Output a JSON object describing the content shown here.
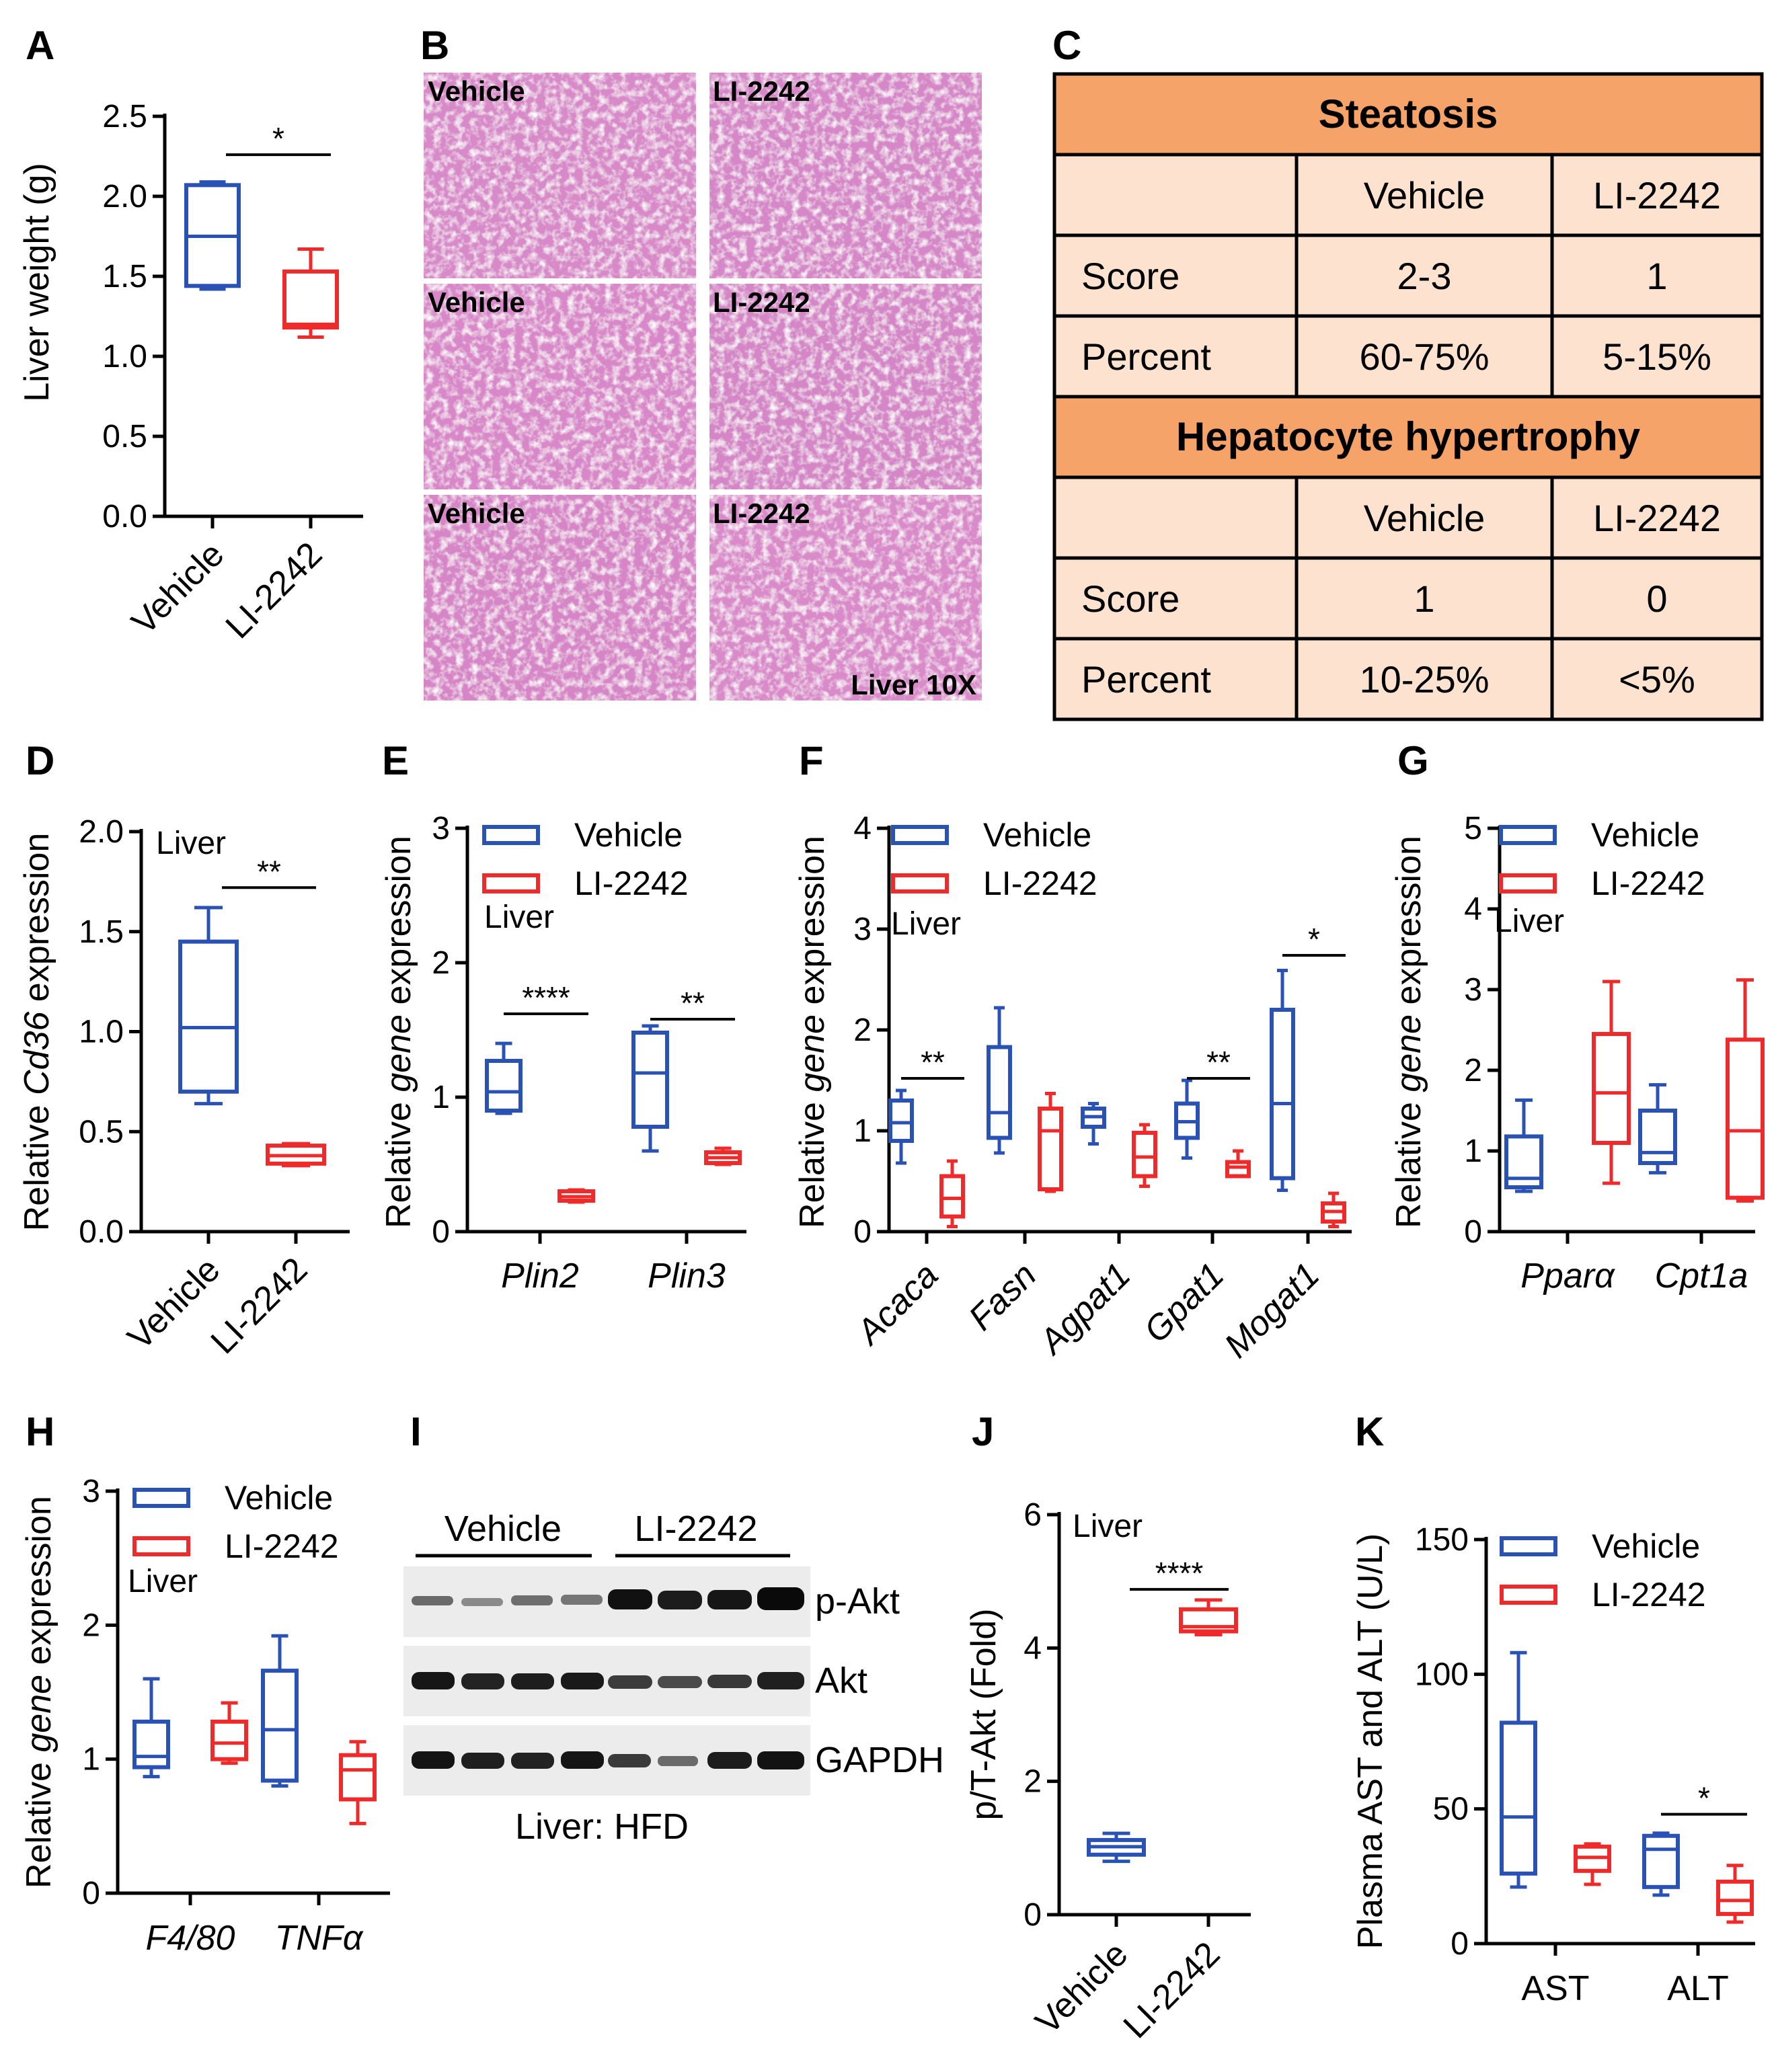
{
  "colors": {
    "vehicle": "#2a52b5",
    "li2242": "#ee2a2a",
    "table_header": "#f6a36a",
    "table_cell": "#fde3cf"
  },
  "panel_letters": [
    "A",
    "B",
    "C",
    "D",
    "E",
    "F",
    "G",
    "H",
    "I",
    "J",
    "K"
  ],
  "panel_b": {
    "tiles": [
      {
        "label": "Vehicle"
      },
      {
        "label": "LI-2242"
      },
      {
        "label": "Vehicle"
      },
      {
        "label": "LI-2242"
      },
      {
        "label": "Vehicle"
      },
      {
        "label": "LI-2242"
      }
    ],
    "magnification": "Liver 10X"
  },
  "panel_c": {
    "sections": [
      {
        "title": "Steatosis",
        "columns": [
          "",
          "Vehicle",
          "LI-2242"
        ],
        "rows": [
          [
            "Score",
            "2-3",
            "1"
          ],
          [
            "Percent",
            "60-75%",
            "5-15%"
          ]
        ]
      },
      {
        "title": "Hepatocyte hypertrophy",
        "columns": [
          "",
          "Vehicle",
          "LI-2242"
        ],
        "rows": [
          [
            "Score",
            "1",
            "0"
          ],
          [
            "Percent",
            "10-25%",
            "<5%"
          ]
        ]
      }
    ]
  },
  "panel_i": {
    "groups": [
      "Vehicle",
      "LI-2242"
    ],
    "bands": [
      "p-Akt",
      "Akt",
      "GAPDH"
    ],
    "caption": "Liver: HFD"
  },
  "chart_data": [
    {
      "panel": "A",
      "type": "box",
      "title": "",
      "xlabel": "",
      "ylabel": "Liver weight (g)",
      "ylim": [
        0,
        2.5
      ],
      "yticks": [
        "0.0",
        "0.5",
        "1.0",
        "1.5",
        "2.0",
        "2.5"
      ],
      "categories": [
        "Vehicle",
        "LI-2242"
      ],
      "rotate_categories": true,
      "tissue": "",
      "legend": [],
      "groups": [
        {
          "category": "Vehicle",
          "series": "Vehicle",
          "min": 1.42,
          "q1": 1.44,
          "median": 1.75,
          "q3": 2.07,
          "max": 2.09
        },
        {
          "category": "LI-2242",
          "series": "LI-2242",
          "min": 1.12,
          "q1": 1.18,
          "median": 1.2,
          "q3": 1.53,
          "max": 1.67
        }
      ],
      "significance": [
        {
          "label": "*",
          "category": "Vehicle|LI-2242",
          "level": 2.26
        }
      ]
    },
    {
      "panel": "D",
      "type": "box",
      "title": "",
      "xlabel": "",
      "ylabel": "Relative Cd36 expression",
      "ylim": [
        0,
        2.0
      ],
      "yticks": [
        "0.0",
        "0.5",
        "1.0",
        "1.5",
        "2.0"
      ],
      "categories": [
        "Vehicle",
        "LI-2242"
      ],
      "rotate_categories": true,
      "tissue": "Liver",
      "legend": [],
      "groups": [
        {
          "category": "Vehicle",
          "series": "Vehicle",
          "min": 0.64,
          "q1": 0.7,
          "median": 1.02,
          "q3": 1.45,
          "max": 1.62
        },
        {
          "category": "LI-2242",
          "series": "LI-2242",
          "min": 0.33,
          "q1": 0.34,
          "median": 0.38,
          "q3": 0.43,
          "max": 0.44
        }
      ],
      "significance": [
        {
          "label": "**",
          "category": "Vehicle|LI-2242",
          "level": 1.72
        }
      ]
    },
    {
      "panel": "E",
      "type": "box",
      "title": "",
      "xlabel": "",
      "ylabel": "Relative gene expression",
      "ylim": [
        0,
        3
      ],
      "yticks": [
        "0",
        "1",
        "2",
        "3"
      ],
      "categories": [
        "Plin2",
        "Plin3"
      ],
      "rotate_categories": false,
      "tissue": "Liver",
      "legend": [
        "Vehicle",
        "LI-2242"
      ],
      "groups": [
        {
          "category": "Plin2",
          "series": "Vehicle",
          "min": 0.88,
          "q1": 0.9,
          "median": 1.04,
          "q3": 1.27,
          "max": 1.4
        },
        {
          "category": "Plin2",
          "series": "LI-2242",
          "min": 0.22,
          "q1": 0.23,
          "median": 0.26,
          "q3": 0.3,
          "max": 0.31
        },
        {
          "category": "Plin3",
          "series": "Vehicle",
          "min": 0.6,
          "q1": 0.78,
          "median": 1.18,
          "q3": 1.48,
          "max": 1.53
        },
        {
          "category": "Plin3",
          "series": "LI-2242",
          "min": 0.5,
          "q1": 0.51,
          "median": 0.55,
          "q3": 0.59,
          "max": 0.62
        }
      ],
      "significance": [
        {
          "label": "****",
          "category": "Plin2",
          "level": 1.62
        },
        {
          "label": "**",
          "category": "Plin3",
          "level": 1.58
        }
      ]
    },
    {
      "panel": "F",
      "type": "box",
      "title": "",
      "xlabel": "",
      "ylabel": "Relative gene expression",
      "ylim": [
        0,
        4
      ],
      "yticks": [
        "0",
        "1",
        "2",
        "3",
        "4"
      ],
      "categories": [
        "Acaca",
        "Fasn",
        "Agpat1",
        "Gpat1",
        "Mogat1"
      ],
      "rotate_categories": true,
      "tissue": "Liver",
      "legend": [
        "Vehicle",
        "LI-2242"
      ],
      "groups": [
        {
          "category": "Acaca",
          "series": "Vehicle",
          "min": 0.68,
          "q1": 0.9,
          "median": 1.08,
          "q3": 1.3,
          "max": 1.4
        },
        {
          "category": "Acaca",
          "series": "LI-2242",
          "min": 0.05,
          "q1": 0.15,
          "median": 0.33,
          "q3": 0.55,
          "max": 0.7
        },
        {
          "category": "Fasn",
          "series": "Vehicle",
          "min": 0.78,
          "q1": 0.93,
          "median": 1.18,
          "q3": 1.83,
          "max": 2.22
        },
        {
          "category": "Fasn",
          "series": "LI-2242",
          "min": 0.4,
          "q1": 0.42,
          "median": 1.0,
          "q3": 1.22,
          "max": 1.37
        },
        {
          "category": "Agpat1",
          "series": "Vehicle",
          "min": 0.87,
          "q1": 1.04,
          "median": 1.14,
          "q3": 1.22,
          "max": 1.27
        },
        {
          "category": "Agpat1",
          "series": "LI-2242",
          "min": 0.45,
          "q1": 0.55,
          "median": 0.74,
          "q3": 0.98,
          "max": 1.06
        },
        {
          "category": "Gpat1",
          "series": "Vehicle",
          "min": 0.73,
          "q1": 0.93,
          "median": 1.09,
          "q3": 1.27,
          "max": 1.5
        },
        {
          "category": "Gpat1",
          "series": "LI-2242",
          "min": 0.55,
          "q1": 0.55,
          "median": 0.64,
          "q3": 0.69,
          "max": 0.8
        },
        {
          "category": "Mogat1",
          "series": "Vehicle",
          "min": 0.41,
          "q1": 0.53,
          "median": 1.27,
          "q3": 2.2,
          "max": 2.59
        },
        {
          "category": "Mogat1",
          "series": "LI-2242",
          "min": 0.05,
          "q1": 0.1,
          "median": 0.2,
          "q3": 0.28,
          "max": 0.38
        }
      ],
      "significance": [
        {
          "label": "**",
          "category": "Acaca",
          "level": 1.52
        },
        {
          "label": "**",
          "category": "Gpat1",
          "level": 1.52
        },
        {
          "label": "*",
          "category": "Mogat1",
          "level": 2.74
        }
      ]
    },
    {
      "panel": "G",
      "type": "box",
      "title": "",
      "xlabel": "",
      "ylabel": "Relative gene expression",
      "ylim": [
        0,
        5
      ],
      "yticks": [
        "0",
        "1",
        "2",
        "3",
        "4",
        "5"
      ],
      "categories": [
        "Pparα",
        "Cpt1a"
      ],
      "rotate_categories": false,
      "tissue": "Liver",
      "legend": [
        "Vehicle",
        "LI-2242"
      ],
      "groups": [
        {
          "category": "Pparα",
          "series": "Vehicle",
          "min": 0.5,
          "q1": 0.55,
          "median": 0.66,
          "q3": 1.18,
          "max": 1.63
        },
        {
          "category": "Pparα",
          "series": "LI-2242",
          "min": 0.6,
          "q1": 1.1,
          "median": 1.72,
          "q3": 2.45,
          "max": 3.1
        },
        {
          "category": "Cpt1a",
          "series": "Vehicle",
          "min": 0.73,
          "q1": 0.85,
          "median": 0.98,
          "q3": 1.5,
          "max": 1.82
        },
        {
          "category": "Cpt1a",
          "series": "LI-2242",
          "min": 0.38,
          "q1": 0.42,
          "median": 1.25,
          "q3": 2.38,
          "max": 3.12
        }
      ],
      "significance": []
    },
    {
      "panel": "H",
      "type": "box",
      "title": "",
      "xlabel": "",
      "ylabel": "Relative gene expression",
      "ylim": [
        0,
        3
      ],
      "yticks": [
        "0",
        "1",
        "2",
        "3"
      ],
      "categories": [
        "F4/80",
        "TNFα"
      ],
      "rotate_categories": false,
      "tissue": "Liver",
      "legend": [
        "Vehicle",
        "LI-2242"
      ],
      "groups": [
        {
          "category": "F4/80",
          "series": "Vehicle",
          "min": 0.87,
          "q1": 0.94,
          "median": 1.02,
          "q3": 1.28,
          "max": 1.6
        },
        {
          "category": "F4/80",
          "series": "LI-2242",
          "min": 0.97,
          "q1": 1.0,
          "median": 1.12,
          "q3": 1.28,
          "max": 1.42
        },
        {
          "category": "TNFα",
          "series": "Vehicle",
          "min": 0.8,
          "q1": 0.84,
          "median": 1.22,
          "q3": 1.66,
          "max": 1.92
        },
        {
          "category": "TNFα",
          "series": "LI-2242",
          "min": 0.52,
          "q1": 0.7,
          "median": 0.92,
          "q3": 1.03,
          "max": 1.13
        }
      ],
      "significance": []
    },
    {
      "panel": "J",
      "type": "box",
      "title": "",
      "xlabel": "",
      "ylabel": "p/T-Akt (Fold)",
      "ylim": [
        0,
        6
      ],
      "yticks": [
        "0",
        "2",
        "4",
        "6"
      ],
      "categories": [
        "Vehicle",
        "LI-2242"
      ],
      "rotate_categories": true,
      "tissue": "Liver",
      "legend": [],
      "groups": [
        {
          "category": "Vehicle",
          "series": "Vehicle",
          "min": 0.8,
          "q1": 0.9,
          "median": 1.02,
          "q3": 1.12,
          "max": 1.22
        },
        {
          "category": "LI-2242",
          "series": "LI-2242",
          "min": 4.2,
          "q1": 4.25,
          "median": 4.32,
          "q3": 4.58,
          "max": 4.72
        }
      ],
      "significance": [
        {
          "label": "****",
          "category": "Vehicle|LI-2242",
          "level": 4.88
        }
      ]
    },
    {
      "panel": "K",
      "type": "box",
      "title": "",
      "xlabel": "",
      "ylabel": "Plasma AST and ALT (U/L)",
      "ylim": [
        0,
        150
      ],
      "yticks": [
        "0",
        "50",
        "100",
        "150"
      ],
      "categories": [
        "AST",
        "ALT"
      ],
      "rotate_categories": false,
      "tissue": "",
      "legend": [
        "Vehicle",
        "LI-2242"
      ],
      "groups": [
        {
          "category": "AST",
          "series": "Vehicle",
          "min": 21,
          "q1": 26,
          "median": 47,
          "q3": 82,
          "max": 108
        },
        {
          "category": "AST",
          "series": "LI-2242",
          "min": 22,
          "q1": 27,
          "median": 32,
          "q3": 36,
          "max": 37
        },
        {
          "category": "ALT",
          "series": "Vehicle",
          "min": 18,
          "q1": 21,
          "median": 35,
          "q3": 40,
          "max": 41
        },
        {
          "category": "ALT",
          "series": "LI-2242",
          "min": 8,
          "q1": 11,
          "median": 16,
          "q3": 23,
          "max": 29
        }
      ],
      "significance": [
        {
          "label": "*",
          "category": "ALT",
          "level": 48
        }
      ]
    }
  ]
}
